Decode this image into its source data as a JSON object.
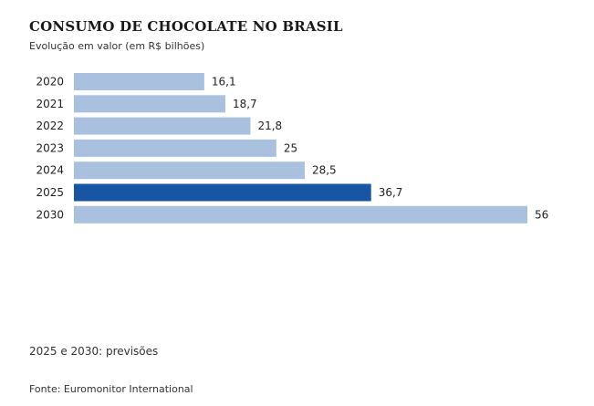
{
  "chart_data": {
    "type": "bar",
    "orientation": "horizontal",
    "title": "CONSUMO DE CHOCOLATE NO BRASIL",
    "subtitle": "Evolução em valor (em R$ bilhões)",
    "categories": [
      "2020",
      "2021",
      "2022",
      "2023",
      "2024",
      "2025",
      "2030"
    ],
    "values": [
      16.1,
      18.7,
      21.8,
      25,
      28.5,
      36.7,
      56
    ],
    "value_labels": [
      "16,1",
      "18,7",
      "21,8",
      "25",
      "28,5",
      "36,7",
      "56"
    ],
    "highlight_category": "2025",
    "xlim": [
      0,
      56
    ],
    "grid": false,
    "legend": "none"
  },
  "colors": {
    "bar": "#a9c1de",
    "highlight": "#1856a3",
    "text": "#222222"
  },
  "footer": {
    "note": "2025 e 2030: previsões",
    "source": "Fonte: Euromonitor International"
  }
}
